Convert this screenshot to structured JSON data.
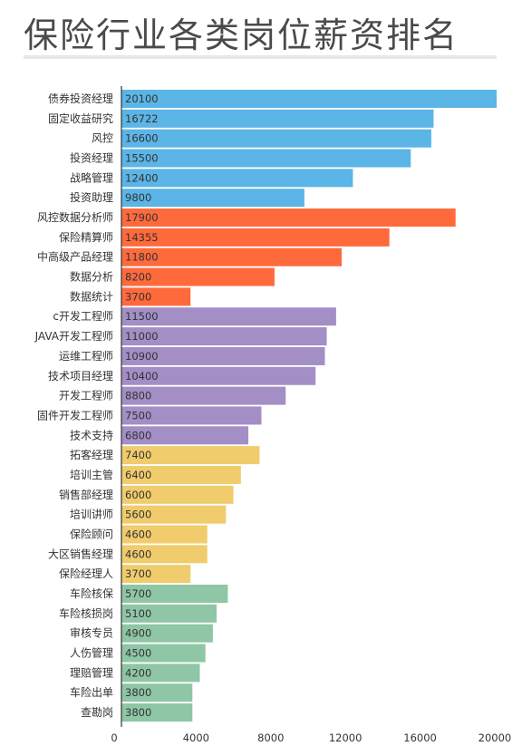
{
  "chart_data": {
    "type": "bar",
    "orientation": "horizontal",
    "title": "保险行业各类岗位薪资排名",
    "xlabel": "",
    "ylabel": "",
    "xlim": [
      0,
      22000
    ],
    "xticks": [
      "0",
      "4000",
      "8000",
      "12000",
      "16000",
      "20000"
    ],
    "grid": false,
    "bars": [
      {
        "category": "债券投资经理",
        "value": 20100,
        "label": "20100",
        "color": "#5bb5e6"
      },
      {
        "category": "固定收益研究",
        "value": 16722,
        "label": "16722",
        "color": "#5bb5e6"
      },
      {
        "category": "风控",
        "value": 16600,
        "label": "16600",
        "color": "#5bb5e6"
      },
      {
        "category": "投资经理",
        "value": 15500,
        "label": "15500",
        "color": "#5bb5e6"
      },
      {
        "category": "战略管理",
        "value": 12400,
        "label": "12400",
        "color": "#5bb5e6"
      },
      {
        "category": "投资助理",
        "value": 9800,
        "label": "9800",
        "color": "#5bb5e6"
      },
      {
        "category": "风控数据分析师",
        "value": 17900,
        "label": "17900",
        "color": "#ff6a3d"
      },
      {
        "category": "保险精算师",
        "value": 14355,
        "label": "14355",
        "color": "#ff6a3d"
      },
      {
        "category": "中高级产品经理",
        "value": 11800,
        "label": "11800",
        "color": "#ff6a3d"
      },
      {
        "category": "数据分析",
        "value": 8200,
        "label": "8200",
        "color": "#ff6a3d"
      },
      {
        "category": "数据统计",
        "value": 3700,
        "label": "3700",
        "color": "#ff6a3d"
      },
      {
        "category": "c开发工程师",
        "value": 11500,
        "label": "11500",
        "color": "#a38ec6"
      },
      {
        "category": "JAVA开发工程师",
        "value": 11000,
        "label": "11000",
        "color": "#a38ec6"
      },
      {
        "category": "运维工程师",
        "value": 10900,
        "label": "10900",
        "color": "#a38ec6"
      },
      {
        "category": "技术项目经理",
        "value": 10400,
        "label": "10400",
        "color": "#a38ec6"
      },
      {
        "category": "开发工程师",
        "value": 8800,
        "label": "8800",
        "color": "#a38ec6"
      },
      {
        "category": "固件开发工程师",
        "value": 7500,
        "label": "7500",
        "color": "#a38ec6"
      },
      {
        "category": "技术支持",
        "value": 6800,
        "label": "6800",
        "color": "#a38ec6"
      },
      {
        "category": "拓客经理",
        "value": 7400,
        "label": "7400",
        "color": "#f0cc6c"
      },
      {
        "category": "培训主管",
        "value": 6400,
        "label": "6400",
        "color": "#f0cc6c"
      },
      {
        "category": "销售部经理",
        "value": 6000,
        "label": "6000",
        "color": "#f0cc6c"
      },
      {
        "category": "培训讲师",
        "value": 5600,
        "label": "5600",
        "color": "#f0cc6c"
      },
      {
        "category": "保险顾问",
        "value": 4600,
        "label": "4600",
        "color": "#f0cc6c"
      },
      {
        "category": "大区销售经理",
        "value": 4600,
        "label": "4600",
        "color": "#f0cc6c"
      },
      {
        "category": "保险经理人",
        "value": 3700,
        "label": "3700",
        "color": "#f0cc6c"
      },
      {
        "category": "车险核保",
        "value": 5700,
        "label": "5700",
        "color": "#8fc6a6"
      },
      {
        "category": "车险核损岗",
        "value": 5100,
        "label": "5100",
        "color": "#8fc6a6"
      },
      {
        "category": "审核专员",
        "value": 4900,
        "label": "4900",
        "color": "#8fc6a6"
      },
      {
        "category": "人伤管理",
        "value": 4500,
        "label": "4500",
        "color": "#8fc6a6"
      },
      {
        "category": "理赔管理",
        "value": 4200,
        "label": "4200",
        "color": "#8fc6a6"
      },
      {
        "category": "车险出单",
        "value": 3800,
        "label": "3800",
        "color": "#8fc6a6"
      },
      {
        "category": "查勘岗",
        "value": 3800,
        "label": "3800",
        "color": "#8fc6a6"
      }
    ]
  }
}
